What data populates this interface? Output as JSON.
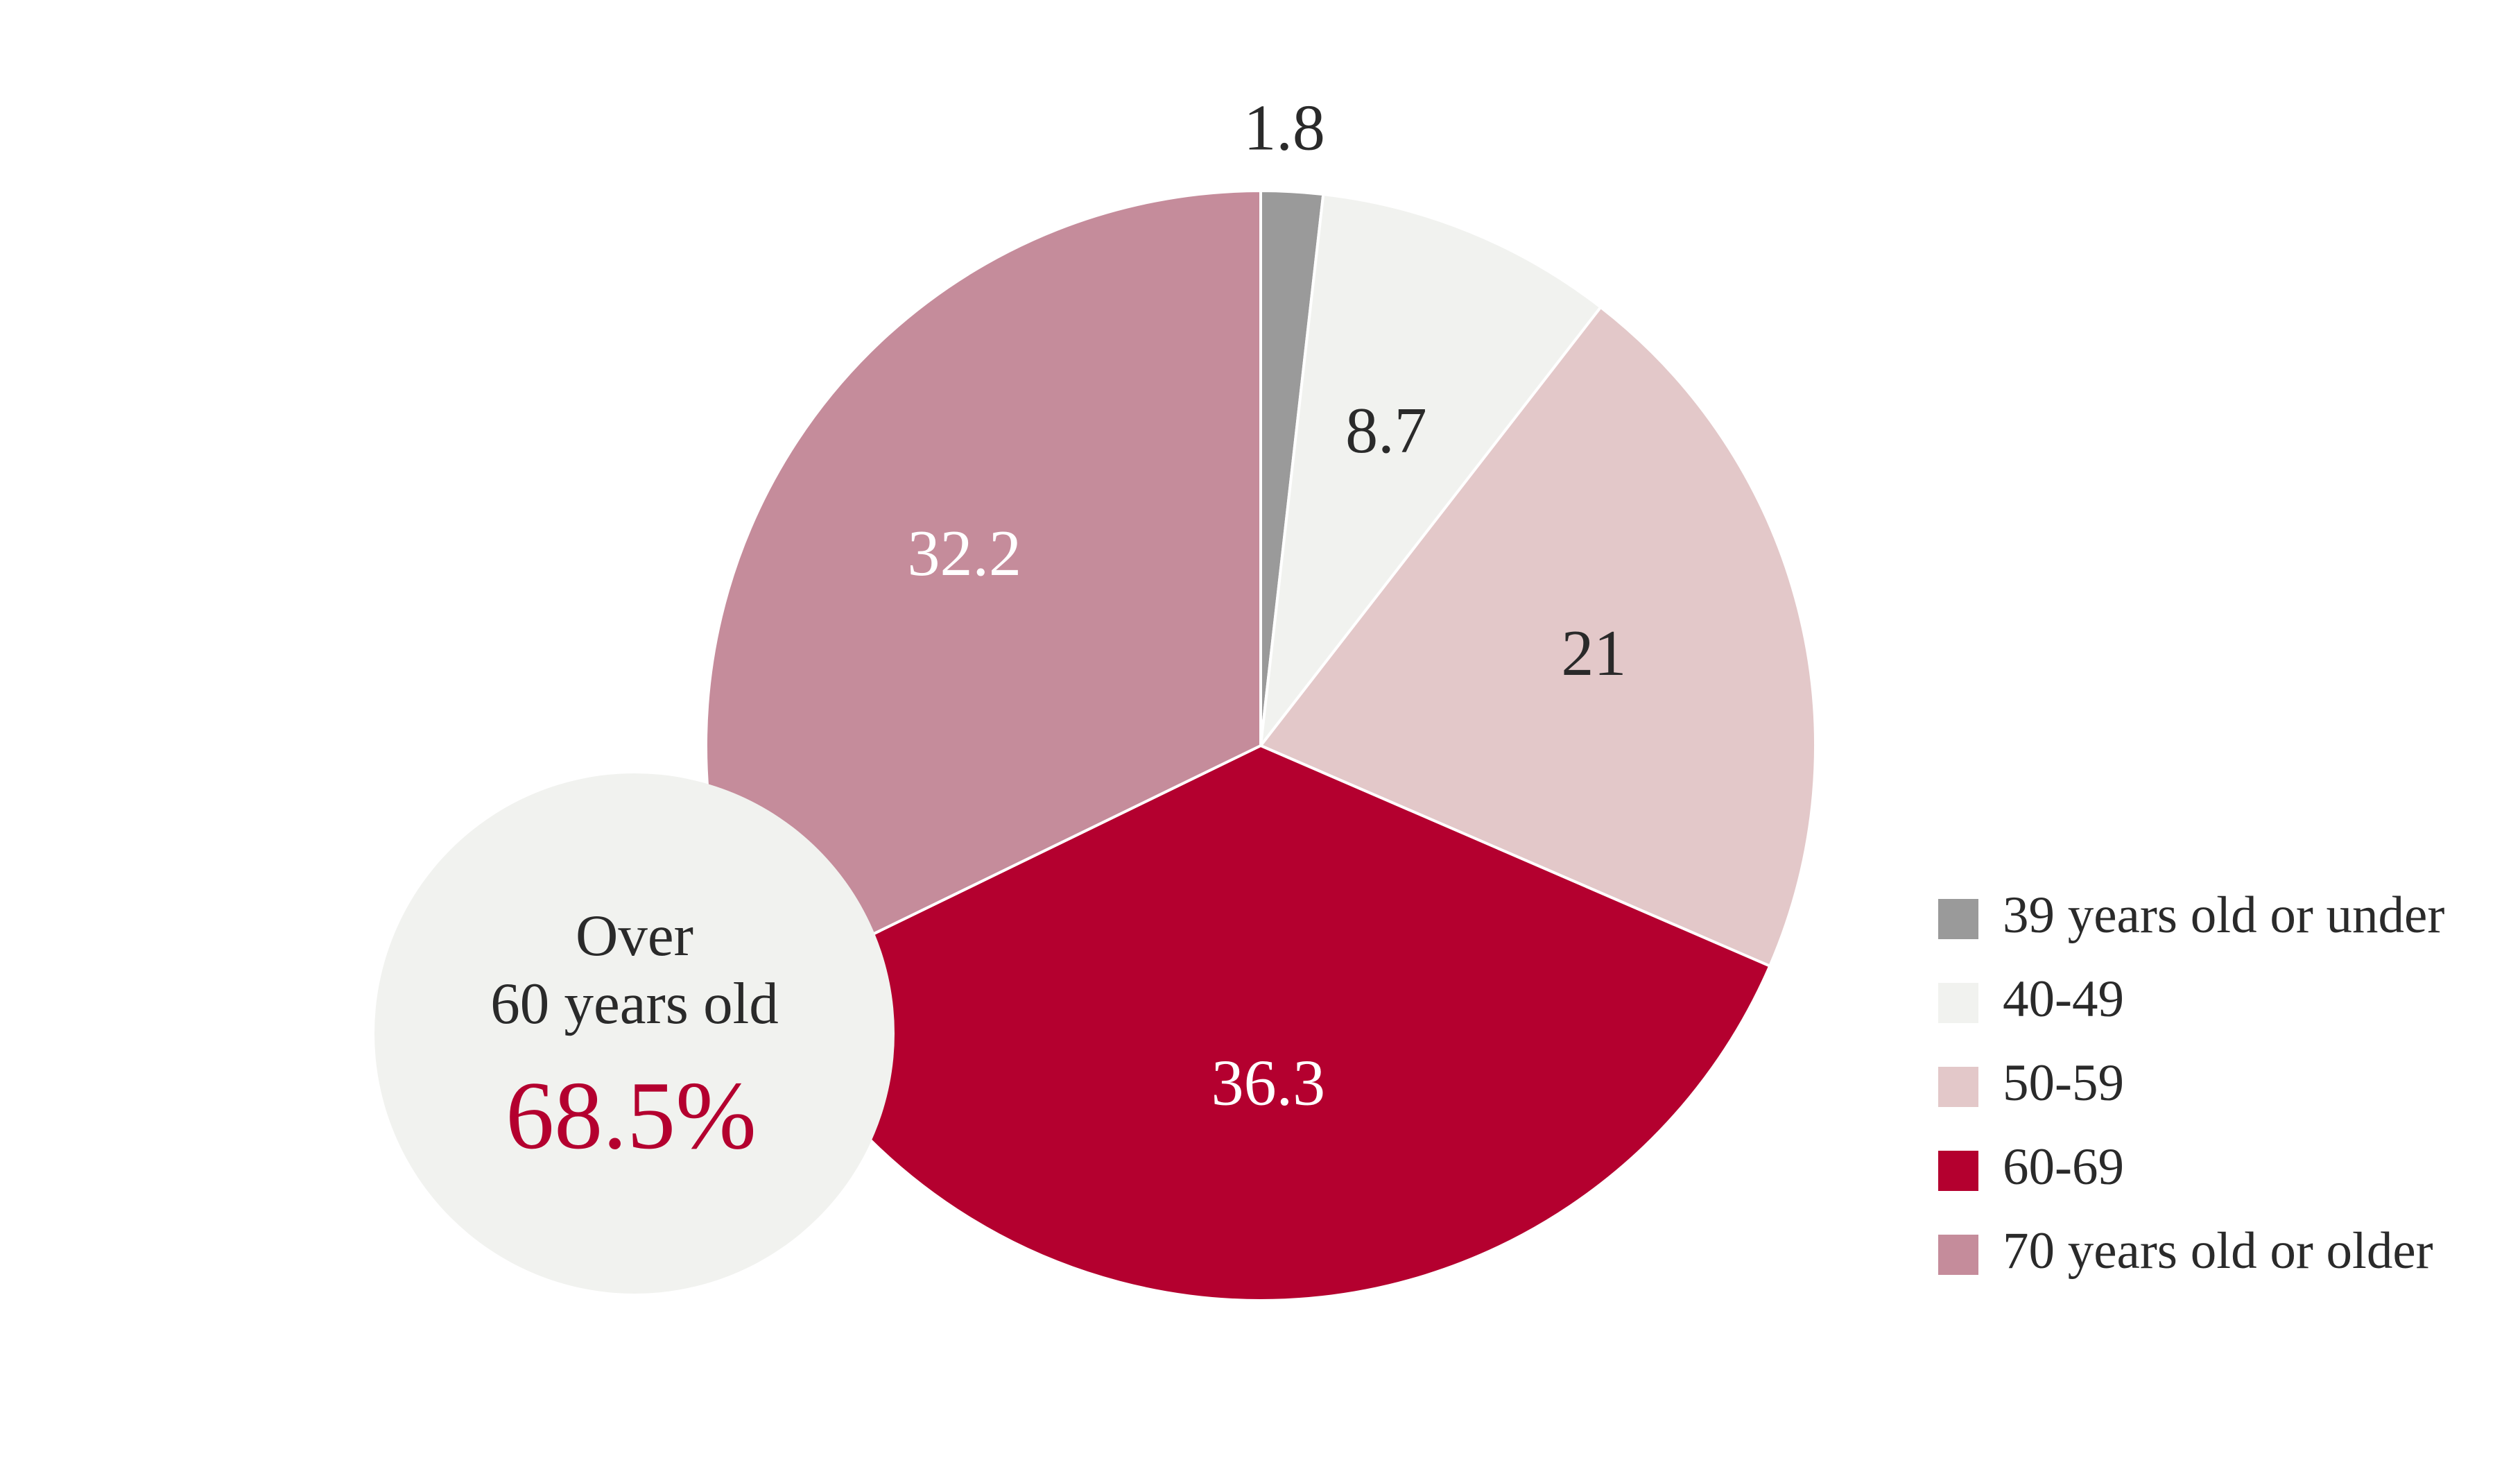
{
  "chart_data": {
    "type": "pie",
    "categories": [
      "39 years old or under",
      "40-49",
      "50-59",
      "60-69",
      "70 years old or older"
    ],
    "values": [
      1.8,
      8.7,
      21,
      36.3,
      32.2
    ],
    "value_labels": [
      "1.8",
      "8.7",
      "21",
      "36.3",
      "32.2"
    ],
    "colors": [
      "#9a9a9a",
      "#f1f2ef",
      "#e3c8c9",
      "#b4002f",
      "#c58c9b"
    ],
    "label_colors": [
      "#2a2a2a",
      "#2a2a2a",
      "#2a2a2a",
      "#ffffff",
      "#ffffff"
    ],
    "start_angle": "12 o'clock",
    "direction": "clockwise",
    "legend_placement": "right",
    "callout": {
      "line1": "Over",
      "line2": "60 years old",
      "value": "68.5%",
      "value_color": "#b4002f",
      "background": "#f1f2ef"
    }
  }
}
